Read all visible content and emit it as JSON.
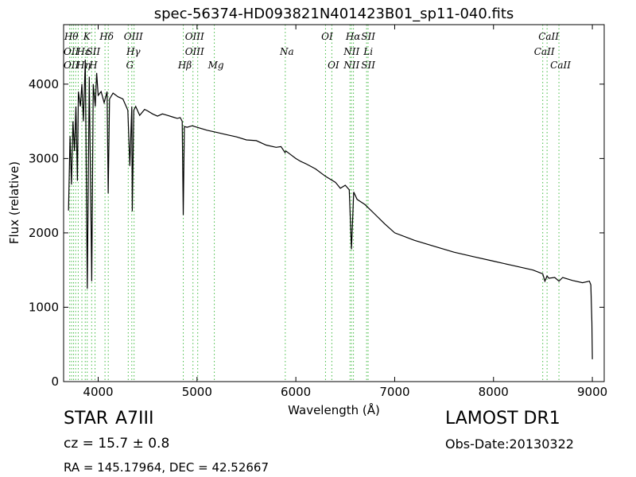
{
  "chart_data": {
    "type": "line",
    "title": "spec-56374-HD093821N401423B01_sp11-040.fits",
    "xlabel": "Wavelength (Å)",
    "ylabel": "Flux (relative)",
    "xlim": [
      3650,
      9120
    ],
    "ylim": [
      0,
      4800
    ],
    "xticks": [
      4000,
      5000,
      6000,
      7000,
      8000,
      9000
    ],
    "yticks": [
      0,
      1000,
      2000,
      3000,
      4000
    ],
    "grid": false,
    "line_color": "#000000",
    "marker_color": "#44bb44",
    "series": [
      {
        "x": [
          3700,
          3715,
          3730,
          3745,
          3760,
          3775,
          3790,
          3800,
          3820,
          3835,
          3850,
          3870,
          3890,
          3910,
          3935,
          3950,
          3970,
          3985,
          4000,
          4030,
          4060,
          4090,
          4101,
          4115,
          4150,
          4200,
          4250,
          4300,
          4320,
          4340,
          4345,
          4360,
          4380,
          4420,
          4470,
          4500,
          4550,
          4600,
          4650,
          4700,
          4750,
          4800,
          4830,
          4850,
          4861,
          4872,
          4900,
          4950,
          5000,
          5100,
          5200,
          5300,
          5400,
          5500,
          5600,
          5700,
          5800,
          5850,
          5890,
          5900,
          5950,
          6000,
          6050,
          6100,
          6200,
          6300,
          6400,
          6450,
          6500,
          6540,
          6563,
          6585,
          6620,
          6700,
          6800,
          6900,
          7000,
          7200,
          7400,
          7600,
          7800,
          8000,
          8200,
          8400,
          8498,
          8520,
          8542,
          8560,
          8620,
          8662,
          8700,
          8800,
          8900,
          8970,
          8985,
          8995,
          9000
        ],
        "y": [
          2300,
          3300,
          2650,
          3500,
          3100,
          3700,
          2700,
          3900,
          3700,
          4000,
          3500,
          4330,
          1250,
          4100,
          1350,
          4000,
          3700,
          4150,
          3850,
          3900,
          3750,
          3900,
          2530,
          3800,
          3880,
          3830,
          3800,
          3650,
          2900,
          3700,
          2290,
          3650,
          3700,
          3580,
          3660,
          3640,
          3600,
          3570,
          3600,
          3580,
          3560,
          3540,
          3550,
          3500,
          2240,
          3430,
          3420,
          3440,
          3420,
          3380,
          3350,
          3320,
          3290,
          3250,
          3240,
          3180,
          3150,
          3160,
          3080,
          3100,
          3050,
          3000,
          2960,
          2930,
          2860,
          2760,
          2680,
          2600,
          2640,
          2580,
          1780,
          2550,
          2450,
          2380,
          2250,
          2120,
          2000,
          1900,
          1820,
          1740,
          1680,
          1620,
          1560,
          1500,
          1450,
          1350,
          1420,
          1390,
          1400,
          1350,
          1400,
          1360,
          1330,
          1350,
          1300,
          800,
          300
        ]
      }
    ],
    "lines": [
      {
        "x": 3712,
        "top": "Hθ",
        "mid": "OII",
        "low": "OII"
      },
      {
        "x": 3730
      },
      {
        "x": 3750
      },
      {
        "x": 3772
      },
      {
        "x": 3798
      },
      {
        "x": 3835,
        "mid": "Hε",
        "low": "Hη"
      },
      {
        "x": 3869,
        "top": "K"
      },
      {
        "x": 3889
      },
      {
        "x": 3934,
        "mid": "SII",
        "low": "H"
      },
      {
        "x": 3968
      },
      {
        "x": 4069,
        "top": "Hδ"
      },
      {
        "x": 4102
      },
      {
        "x": 4304,
        "low": "G"
      },
      {
        "x": 4340,
        "top": "OIII",
        "mid": "Hγ"
      },
      {
        "x": 4363
      },
      {
        "x": 4861,
        "low": "Hβ"
      },
      {
        "x": 4959,
        "top": "OIII",
        "mid": "OIII"
      },
      {
        "x": 5007
      },
      {
        "x": 5175,
        "low": "Mg"
      },
      {
        "x": 5893,
        "mid": "Na"
      },
      {
        "x": 6300,
        "top": "OI"
      },
      {
        "x": 6364,
        "low": "OI"
      },
      {
        "x": 6548,
        "mid": "NII",
        "low": "NII"
      },
      {
        "x": 6563,
        "top": "Hα"
      },
      {
        "x": 6583
      },
      {
        "x": 6716,
        "top": "SII",
        "mid": "Li",
        "low": "SII"
      },
      {
        "x": 6731
      },
      {
        "x": 8498,
        "mid": "CaII"
      },
      {
        "x": 8542,
        "top": "CaII"
      },
      {
        "x": 8662,
        "low": "CaII"
      }
    ]
  },
  "info": {
    "object_class": "STAR",
    "subclass": "A7III",
    "survey": "LAMOST DR1",
    "redshift": "cz = 15.7  ± 0.8",
    "obs_date": "Obs-Date:20130322",
    "coords": "RA = 145.17964, DEC = 42.52667"
  }
}
